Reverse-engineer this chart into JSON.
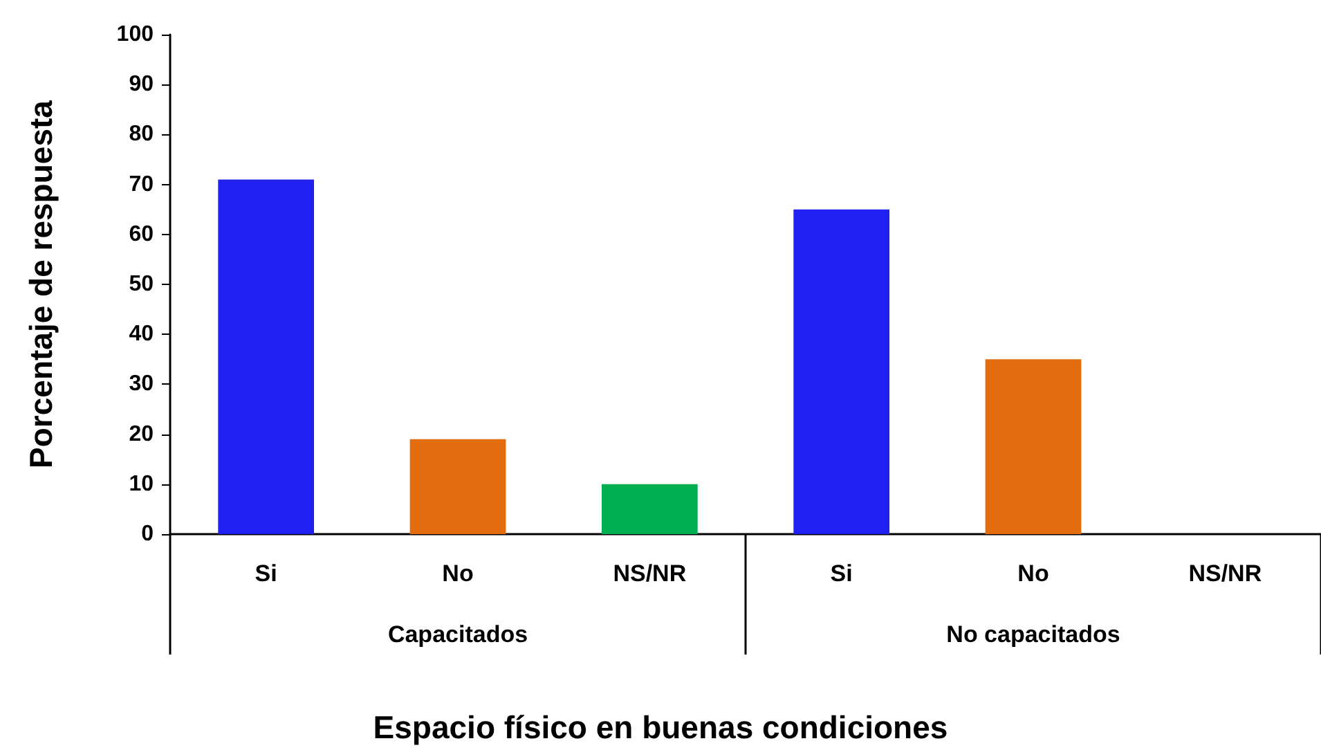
{
  "chart_data": {
    "type": "bar",
    "xlabel": "Espacio físico en buenas condiciones",
    "ylabel": "Porcentaje de respuesta",
    "categories": [
      "Si",
      "No",
      "NS/NR",
      "Si",
      "No",
      "NS/NR"
    ],
    "annotations": [
      "Capacitados",
      "No capacitados"
    ],
    "values": [
      71,
      19,
      10,
      65,
      35,
      0
    ],
    "colors": [
      "#2020f0",
      "#e36c0e",
      "#00b050",
      "#2020f0",
      "#e36c0e",
      "#00b050"
    ],
    "ylim": [
      0,
      100
    ],
    "yticks": [
      0,
      10,
      20,
      30,
      40,
      50,
      60,
      70,
      80,
      90,
      100
    ],
    "grid": false
  }
}
